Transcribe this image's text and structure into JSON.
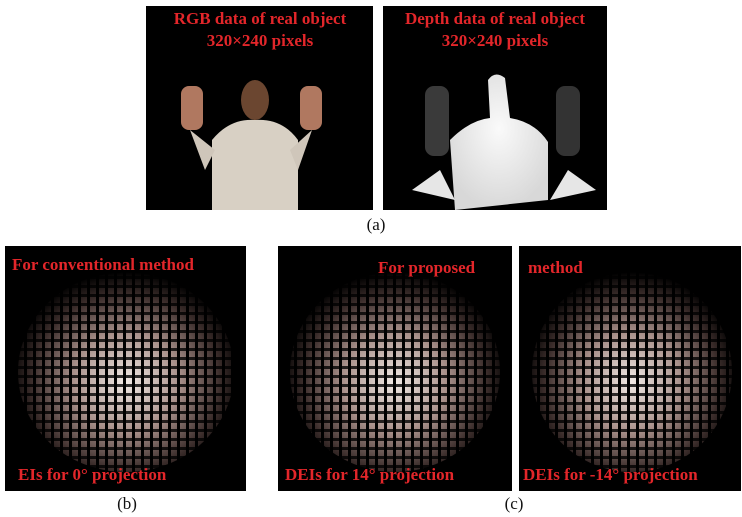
{
  "figure_a": {
    "rgb": {
      "title": "RGB data of real object",
      "size": "320×240 pixels"
    },
    "depth": {
      "title": "Depth data of real object",
      "size": "320×240 pixels"
    },
    "label": "(a)"
  },
  "figure_b": {
    "top": "For conventional method",
    "bottom": "EIs for 0° projection",
    "label": "(b)"
  },
  "figure_c": {
    "top_left": "For proposed",
    "top_right": "method",
    "bottom_left": "DEIs for 14° projection",
    "bottom_right": "DEIs for -14° projection",
    "label": "(c)"
  }
}
